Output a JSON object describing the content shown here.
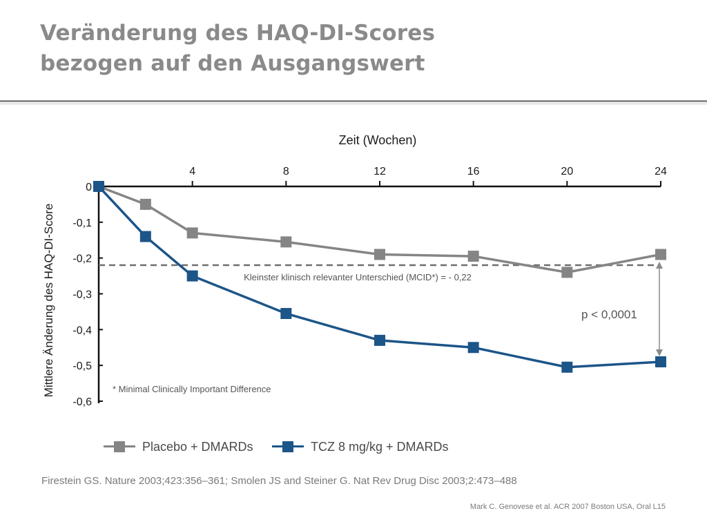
{
  "title": {
    "line1": "Veränderung des HAQ-DI-Scores",
    "line2": "bezogen auf den Ausgangswert"
  },
  "chart_data": {
    "type": "line",
    "xlabel": "Zeit (Wochen)",
    "ylabel": "Mittlere Änderung des HAQ-DI-Score",
    "xlim": [
      0,
      24
    ],
    "ylim": [
      -0.6,
      0
    ],
    "xticks": [
      4,
      8,
      12,
      16,
      20,
      24
    ],
    "xtick_labels": [
      "4",
      "8",
      "12",
      "16",
      "20",
      "24"
    ],
    "yticks": [
      0,
      -0.1,
      -0.2,
      -0.3,
      -0.4,
      -0.5,
      -0.6
    ],
    "ytick_labels": [
      "0",
      "-0,1",
      "-0,2",
      "-0,3",
      "-0,4",
      "-0,5",
      "-0,6"
    ],
    "x_axis_position": "top",
    "grid": false,
    "legend_position": "bottom-left",
    "series": [
      {
        "name": "Placebo + DMARDs",
        "color": "#858585",
        "x": [
          0,
          2,
          4,
          8,
          12,
          16,
          20,
          24
        ],
        "y": [
          0,
          -0.05,
          -0.13,
          -0.155,
          -0.19,
          -0.195,
          -0.24,
          -0.19
        ]
      },
      {
        "name": "TCZ 8 mg/kg + DMARDs",
        "color": "#1c5588",
        "x": [
          0,
          2,
          4,
          8,
          12,
          16,
          20,
          24
        ],
        "y": [
          0,
          -0.14,
          -0.25,
          -0.355,
          -0.43,
          -0.45,
          -0.505,
          -0.49
        ]
      }
    ],
    "reference_line": {
      "y": -0.22,
      "label": "Kleinster klinisch relevanter Unterschied (MCID*) = - 0,22",
      "color": "#6e6e6e",
      "style": "dashed"
    },
    "annotations": {
      "significance": "p < 0,0001",
      "footnote": "* Minimal Clinically Important Difference"
    }
  },
  "legend": {
    "items": [
      {
        "label": "Placebo + DMARDs",
        "color": "#858585"
      },
      {
        "label": "TCZ 8 mg/kg + DMARDs",
        "color": "#1c5588"
      }
    ]
  },
  "reference": "Firestein GS. Nature 2003;423:356–361; Smolen JS and Steiner G. Nat Rev Drug Disc 2003;2:473–488",
  "credit": "Mark C. Genovese et al. ACR 2007 Boston USA, Oral L15"
}
